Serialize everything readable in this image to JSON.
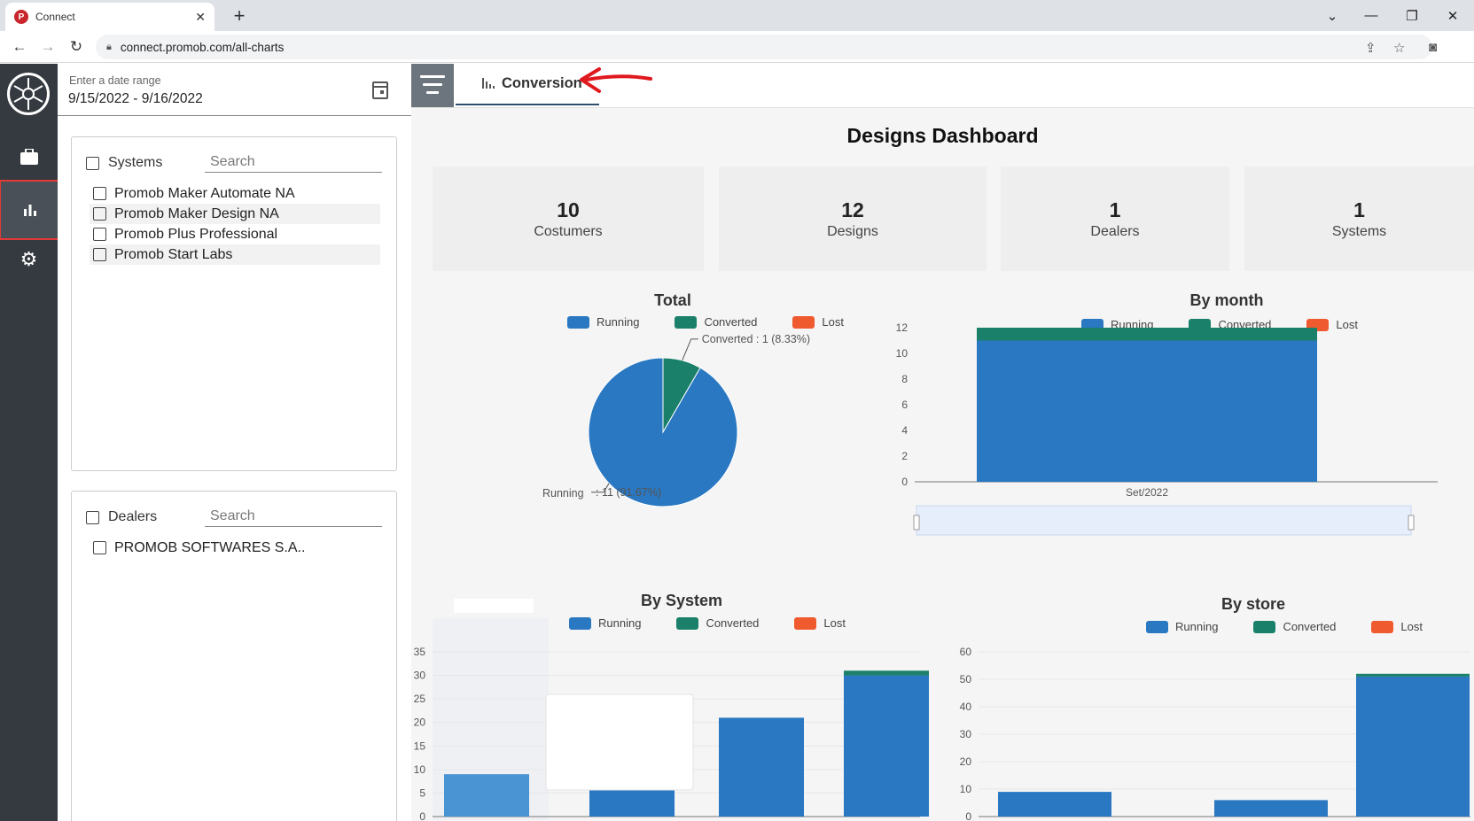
{
  "browser": {
    "tab_title": "Connect",
    "favicon_letter": "P",
    "url": "connect.promob.com/all-charts"
  },
  "filters": {
    "date_label": "Enter a date range",
    "date_value": "9/15/2022 - 9/16/2022",
    "systems": {
      "header": "Systems",
      "search_placeholder": "Search",
      "items": [
        "Promob Maker Automate NA",
        "Promob Maker Design NA",
        "Promob Plus Professional",
        "Promob Start Labs"
      ]
    },
    "dealers": {
      "header": "Dealers",
      "search_placeholder": "Search",
      "items": [
        "PROMOB SOFTWARES S.A.."
      ]
    }
  },
  "main": {
    "tab_label": "Conversion",
    "title": "Designs Dashboard",
    "kpis": [
      {
        "value": "10",
        "label": "Costumers"
      },
      {
        "value": "12",
        "label": "Designs"
      },
      {
        "value": "1",
        "label": "Dealers"
      },
      {
        "value": "1",
        "label": "Systems"
      }
    ],
    "legend": {
      "running": "Running",
      "converted": "Converted",
      "lost": "Lost"
    }
  },
  "colors": {
    "running": "#2a78c2",
    "converted": "#1a8069",
    "lost": "#ef5a2f",
    "rail": "#343a40",
    "highlight": "#e53935"
  },
  "chart_data": [
    {
      "type": "pie",
      "title": "Total",
      "series": [
        {
          "name": "Running",
          "value": 11,
          "label": "Running",
          "percent_label": ": 11 (91.67%)"
        },
        {
          "name": "Converted",
          "value": 1,
          "label": "Converted : 1 (8.33%)"
        },
        {
          "name": "Lost",
          "value": 0
        }
      ]
    },
    {
      "type": "bar",
      "title": "By month",
      "stacked": true,
      "categories": [
        "Set/2022"
      ],
      "series": [
        {
          "name": "Running",
          "values": [
            11
          ]
        },
        {
          "name": "Converted",
          "values": [
            1
          ]
        },
        {
          "name": "Lost",
          "values": [
            0
          ]
        }
      ],
      "ylim": [
        0,
        12
      ],
      "yticks": [
        0,
        2,
        4,
        6,
        8,
        10,
        12
      ]
    },
    {
      "type": "bar",
      "title": "By System",
      "stacked": true,
      "categories": [
        "",
        "",
        "",
        ""
      ],
      "series": [
        {
          "name": "Running",
          "values": [
            9,
            6,
            21,
            30
          ]
        },
        {
          "name": "Converted",
          "values": [
            0,
            0,
            0,
            1
          ]
        },
        {
          "name": "Lost",
          "values": [
            0,
            0,
            0,
            0
          ]
        }
      ],
      "ylim": [
        0,
        35
      ],
      "yticks": [
        0,
        5,
        10,
        15,
        20,
        25,
        30,
        35
      ]
    },
    {
      "type": "bar",
      "title": "By store",
      "stacked": true,
      "categories": [
        "",
        "",
        ""
      ],
      "series": [
        {
          "name": "Running",
          "values": [
            9,
            6,
            51
          ]
        },
        {
          "name": "Converted",
          "values": [
            0,
            0,
            1
          ]
        },
        {
          "name": "Lost",
          "values": [
            0,
            0,
            0
          ]
        }
      ],
      "ylim": [
        0,
        60
      ],
      "yticks": [
        0,
        10,
        20,
        30,
        40,
        50,
        60
      ]
    }
  ]
}
